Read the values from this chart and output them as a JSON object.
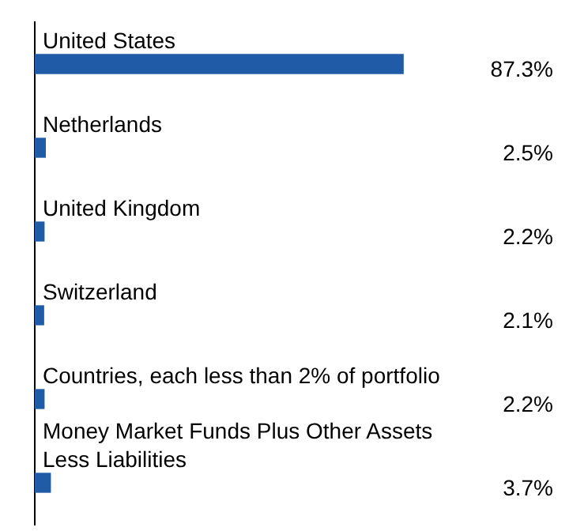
{
  "chart_data": {
    "type": "bar",
    "orientation": "horizontal",
    "categories": [
      "United States",
      "Netherlands",
      "United Kingdom",
      "Switzerland",
      "Countries, each less than 2% of portfolio",
      "Money Market Funds Plus Other Assets Less Liabilities"
    ],
    "values": [
      87.3,
      2.5,
      2.2,
      2.1,
      2.2,
      3.7
    ],
    "value_labels": [
      "87.3%",
      "2.5%",
      "2.2%",
      "2.1%",
      "2.2%",
      "3.7%"
    ],
    "color": "#1f5ba6"
  }
}
